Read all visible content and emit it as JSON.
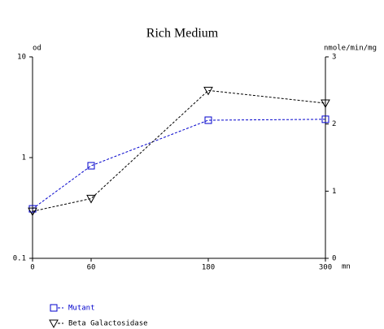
{
  "chart_data": {
    "type": "line",
    "title": "Rich Medium",
    "y_label": "od",
    "y2_label": "nmole/min/mg",
    "x_label": "mn",
    "x": [
      0,
      60,
      180,
      300
    ],
    "xlim": [
      0,
      300
    ],
    "xticks": [
      0,
      60,
      180,
      300
    ],
    "ylim": [
      0.1,
      10
    ],
    "yticks": [
      0.1,
      1,
      10
    ],
    "y_log": true,
    "y2lim": [
      0,
      3
    ],
    "y2ticks": [
      0,
      1,
      2,
      3
    ],
    "series": [
      {
        "name": "Mutant",
        "color": "#0000cc",
        "marker": "square",
        "values": [
          0.31,
          0.83,
          2.35,
          2.4
        ]
      },
      {
        "name": "Beta Galactosidase",
        "color": "#000000",
        "marker": "triangle-down",
        "axis": "y2",
        "values": [
          0.7,
          0.89,
          2.5,
          2.31
        ]
      }
    ]
  }
}
